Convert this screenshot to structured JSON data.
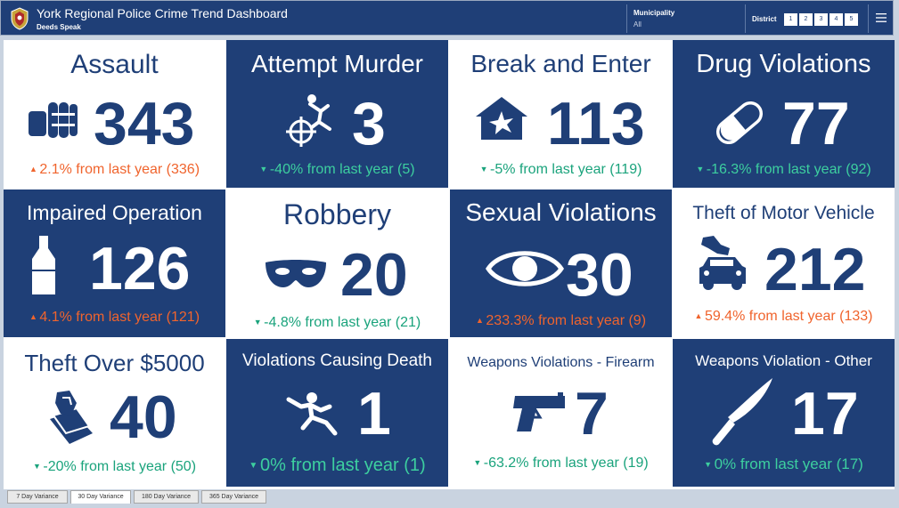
{
  "header": {
    "title": "York Regional Police Crime Trend Dashboard",
    "subtitle": "Deeds Speak",
    "municipality_label": "Municipality",
    "municipality_value": "All",
    "district_label": "District",
    "districts": [
      "1",
      "2",
      "3",
      "4",
      "5"
    ],
    "logo_icon": "police-crest-icon",
    "menu_icon": "hamburger-menu-icon"
  },
  "colors": {
    "navy": "#1f3f77",
    "increase": "#f0642d",
    "decrease": "#1aa37c"
  },
  "cards": [
    {
      "title": "Assault",
      "value": "343",
      "change": "2.1% from last year (336)",
      "direction": "up",
      "icon": "fist-icon"
    },
    {
      "title": "Attempt Murder",
      "value": "3",
      "change": "-40% from last year (5)",
      "direction": "down",
      "icon": "crosshair-falling-person-icon"
    },
    {
      "title": "Break and Enter",
      "value": "113",
      "change": "-5% from last year (119)",
      "direction": "down",
      "icon": "house-break-icon"
    },
    {
      "title": "Drug Violations",
      "value": "77",
      "change": "-16.3% from last year (92)",
      "direction": "down",
      "icon": "pill-icon"
    },
    {
      "title": "Impaired Operation",
      "value": "126",
      "change": "4.1% from last year (121)",
      "direction": "up",
      "icon": "bottle-icon"
    },
    {
      "title": "Robbery",
      "value": "20",
      "change": "-4.8% from last year (21)",
      "direction": "down",
      "icon": "mask-icon"
    },
    {
      "title": "Sexual Violations",
      "value": "30",
      "change": "233.3% from last year (9)",
      "direction": "up",
      "icon": "eye-icon"
    },
    {
      "title": "Theft of Motor Vehicle",
      "value": "212",
      "change": "59.4% from last year (133)",
      "direction": "up",
      "icon": "hand-car-icon"
    },
    {
      "title": "Theft Over $5000",
      "value": "40",
      "change": "-20% from last year (50)",
      "direction": "down",
      "icon": "hand-money-icon"
    },
    {
      "title": "Violations Causing Death",
      "value": "1",
      "change": "0% from last year (1)",
      "direction": "down",
      "icon": "falling-person-icon"
    },
    {
      "title": "Weapons Violations - Firearm",
      "value": "7",
      "change": "-63.2% from last year (19)",
      "direction": "down",
      "icon": "handgun-icon"
    },
    {
      "title": "Weapons Violation - Other",
      "value": "17",
      "change": "0% from last year (17)",
      "direction": "down",
      "icon": "knife-icon"
    }
  ],
  "tabs": [
    {
      "label": "7 Day Variance",
      "active": false
    },
    {
      "label": "30 Day Variance",
      "active": true
    },
    {
      "label": "180 Day Variance",
      "active": false
    },
    {
      "label": "365 Day Variance",
      "active": false
    }
  ]
}
